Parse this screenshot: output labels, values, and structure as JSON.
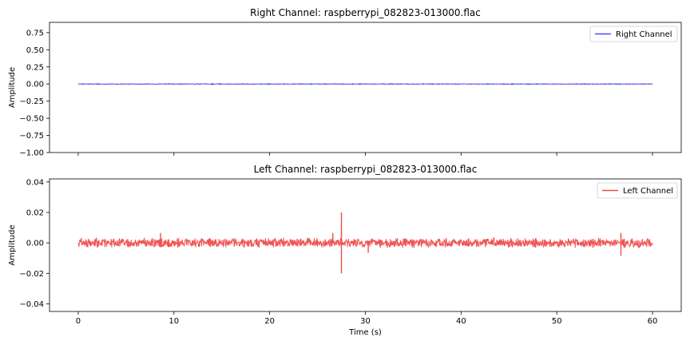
{
  "chart_data": [
    {
      "type": "line",
      "title": "Right Channel: raspberrypi_082823-013000.flac",
      "xlabel": "",
      "ylabel": "Amplitude",
      "xlim": [
        -3,
        63
      ],
      "ylim": [
        -1.0,
        0.9
      ],
      "xticks": [
        0,
        10,
        20,
        30,
        40,
        50,
        60
      ],
      "xtick_labels_visible": false,
      "yticks": [
        -1.0,
        -0.75,
        -0.5,
        -0.25,
        0.0,
        0.25,
        0.5,
        0.75
      ],
      "ytick_labels": [
        "−1.00",
        "−0.75",
        "−0.50",
        "−0.25",
        "0.00",
        "0.25",
        "0.50",
        "0.75"
      ],
      "legend_position": "top-right",
      "grid": false,
      "series": [
        {
          "name": "Right Channel",
          "color": "#4b4bf0",
          "x_range": [
            0,
            60
          ],
          "envelope_amplitude": 0.006,
          "spikes": [
            {
              "x": 9.5,
              "y": 0.012
            },
            {
              "x": 55.5,
              "y": 0.012
            },
            {
              "x": 56.2,
              "y": -0.012
            }
          ]
        }
      ]
    },
    {
      "type": "line",
      "title": "Left Channel: raspberrypi_082823-013000.flac",
      "xlabel": "Time (s)",
      "ylabel": "Amplitude",
      "xlim": [
        -3,
        63
      ],
      "ylim": [
        -0.045,
        0.042
      ],
      "xticks": [
        0,
        10,
        20,
        30,
        40,
        50,
        60
      ],
      "xtick_labels": [
        "0",
        "10",
        "20",
        "30",
        "40",
        "50",
        "60"
      ],
      "yticks": [
        -0.04,
        -0.02,
        0.0,
        0.02,
        0.04
      ],
      "ytick_labels": [
        "−0.04",
        "−0.02",
        "0.00",
        "0.02",
        "0.04"
      ],
      "legend_position": "top-right",
      "grid": false,
      "series": [
        {
          "name": "Left Channel",
          "color": "#f04b4b",
          "x_range": [
            0,
            60
          ],
          "envelope_amplitude": 0.0035,
          "spikes": [
            {
              "x": 27.5,
              "y": 0.02
            },
            {
              "x": 27.5,
              "y": -0.02
            },
            {
              "x": 56.7,
              "y": 0.0065
            },
            {
              "x": 56.7,
              "y": -0.0085
            },
            {
              "x": 8.6,
              "y": 0.0065
            },
            {
              "x": 26.6,
              "y": 0.0065
            },
            {
              "x": 30.3,
              "y": -0.0065
            }
          ]
        }
      ]
    }
  ]
}
